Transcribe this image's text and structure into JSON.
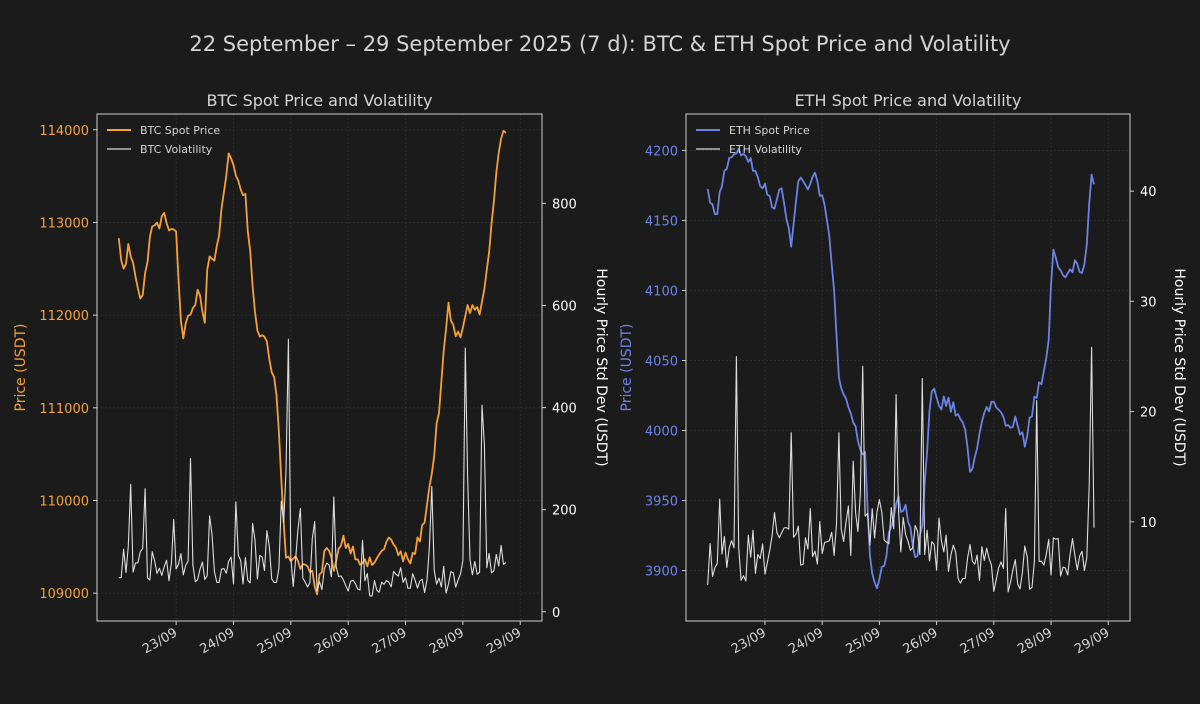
{
  "figure": {
    "title": "22 September – 29 September 2025 (7 d): BTC & ETH Spot Price and Volatility",
    "background": "#1b1b1b",
    "text_color": "#d4d4d4",
    "axes_color": "#cfcfcf"
  },
  "chart_data": [
    {
      "type": "line",
      "title": "BTC Spot Price and Volatility",
      "xlabel": "",
      "ylabel": "Price (USDT)",
      "y2label": "Hourly Price Std Dev (USDT)",
      "x_ticks": [
        "23/09",
        "24/09",
        "25/09",
        "26/09",
        "27/09",
        "28/09",
        "29/09"
      ],
      "x_range_days": [
        -0.38,
        7.38
      ],
      "ylim": [
        108700,
        114170
      ],
      "y_ticks": [
        109000,
        110000,
        111000,
        112000,
        113000,
        114000
      ],
      "y2lim": [
        -18,
        975
      ],
      "y2_ticks": [
        0,
        200,
        400,
        600,
        800
      ],
      "price_color": "#f7a033",
      "vol_color": "#dddddd",
      "legend": [
        "BTC Spot Price",
        "BTC Volatility"
      ],
      "legend_position": "top-left",
      "series_price": {
        "name": "BTC Spot Price",
        "knots_day": [
          0.0,
          0.1,
          0.15,
          0.25,
          0.4,
          0.55,
          0.8,
          1.0,
          1.1,
          1.3,
          1.4,
          1.5,
          1.55,
          1.7,
          1.9,
          2.2,
          2.35,
          2.45,
          2.55,
          2.75,
          2.9,
          3.05,
          3.2,
          3.35,
          3.45,
          3.6,
          3.75,
          3.9,
          4.1,
          4.3,
          4.5,
          4.7,
          4.9,
          5.1,
          5.3,
          5.45,
          5.6,
          5.75,
          5.85,
          5.95,
          6.05,
          6.2,
          6.3,
          6.45,
          6.55,
          6.65,
          6.7,
          6.75
        ],
        "knots_value": [
          112800,
          112400,
          112750,
          112600,
          112100,
          112900,
          113050,
          112850,
          111750,
          112100,
          112300,
          111900,
          112600,
          112650,
          113700,
          113300,
          112200,
          111750,
          111800,
          111200,
          109400,
          109400,
          109300,
          109250,
          108950,
          109500,
          109300,
          109600,
          109450,
          109300,
          109350,
          109600,
          109400,
          109350,
          109700,
          110250,
          111100,
          112100,
          111800,
          111750,
          112050,
          112100,
          112000,
          112600,
          113300,
          113900,
          113950,
          113950
        ],
        "noise": 70
      },
      "series_vol": {
        "name": "BTC Volatility",
        "base_knots_day": [
          0,
          1,
          2,
          3,
          4,
          5,
          6,
          6.55,
          6.75
        ],
        "base_knots_value": [
          90,
          85,
          80,
          75,
          60,
          45,
          70,
          90,
          110
        ],
        "spikes": [
          [
            0.2,
            290
          ],
          [
            0.45,
            280
          ],
          [
            0.95,
            210
          ],
          [
            1.25,
            300
          ],
          [
            1.6,
            260
          ],
          [
            2.05,
            250
          ],
          [
            2.35,
            240
          ],
          [
            2.6,
            220
          ],
          [
            2.85,
            300
          ],
          [
            2.95,
            620
          ],
          [
            3.15,
            280
          ],
          [
            3.4,
            245
          ],
          [
            3.75,
            225
          ],
          [
            4.25,
            140
          ],
          [
            4.9,
            120
          ],
          [
            5.45,
            285
          ],
          [
            6.05,
            600
          ],
          [
            6.35,
            560
          ]
        ],
        "noise": 30
      }
    },
    {
      "type": "line",
      "title": "ETH Spot Price and Volatility",
      "xlabel": "",
      "ylabel": "Price (USDT)",
      "y2label": "Hourly Price Std Dev (USDT)",
      "x_ticks": [
        "23/09",
        "24/09",
        "25/09",
        "26/09",
        "27/09",
        "28/09",
        "29/09"
      ],
      "x_range_days": [
        -0.38,
        7.38
      ],
      "ylim": [
        3864,
        4226
      ],
      "y_ticks": [
        3900,
        3950,
        4000,
        4050,
        4100,
        4150,
        4200
      ],
      "y2lim": [
        1,
        47
      ],
      "y2_ticks": [
        10,
        20,
        30,
        40
      ],
      "price_color": "#6b83e6",
      "vol_color": "#dddddd",
      "legend": [
        "ETH Spot Price",
        "ETH Volatility"
      ],
      "legend_position": "top-left",
      "series_price": {
        "name": "ETH Spot Price",
        "knots_day": [
          0.0,
          0.15,
          0.3,
          0.5,
          0.7,
          0.9,
          1.15,
          1.3,
          1.45,
          1.6,
          1.75,
          1.9,
          2.1,
          2.2,
          2.3,
          2.45,
          2.6,
          2.75,
          2.85,
          2.95,
          3.1,
          3.3,
          3.5,
          3.65,
          3.75,
          3.9,
          4.05,
          4.2,
          4.45,
          4.6,
          4.75,
          4.95,
          5.2,
          5.4,
          5.55,
          5.7,
          5.85,
          5.95,
          6.0,
          6.05,
          6.15,
          6.3,
          6.4,
          6.5,
          6.6,
          6.7,
          6.75
        ],
        "knots_value": [
          4170,
          4155,
          4185,
          4200,
          4195,
          4180,
          4160,
          4175,
          4130,
          4180,
          4175,
          4180,
          4150,
          4110,
          4030,
          4020,
          4000,
          3980,
          3900,
          3890,
          3910,
          3950,
          3940,
          3905,
          3935,
          4030,
          4020,
          4020,
          4010,
          3970,
          4000,
          4020,
          4005,
          4005,
          3990,
          4020,
          4040,
          4060,
          4100,
          4130,
          4115,
          4110,
          4120,
          4110,
          4120,
          4180,
          4180
        ],
        "noise": 5
      },
      "series_vol": {
        "name": "ETH Volatility",
        "base_knots_day": [
          0,
          1,
          2,
          3,
          4,
          5,
          6,
          6.55,
          6.75
        ],
        "base_knots_value": [
          6,
          7,
          8,
          10,
          7,
          5,
          6,
          7,
          9
        ],
        "spikes": [
          [
            0.2,
            14
          ],
          [
            0.5,
            25
          ],
          [
            1.15,
            15
          ],
          [
            1.45,
            21
          ],
          [
            1.8,
            13
          ],
          [
            2.3,
            21
          ],
          [
            2.55,
            18
          ],
          [
            2.7,
            28
          ],
          [
            3.3,
            25
          ],
          [
            3.75,
            23
          ],
          [
            4.05,
            12
          ],
          [
            4.6,
            11
          ],
          [
            5.2,
            13
          ],
          [
            5.75,
            21
          ],
          [
            6.7,
            30
          ]
        ],
        "noise": 2.3
      }
    }
  ]
}
